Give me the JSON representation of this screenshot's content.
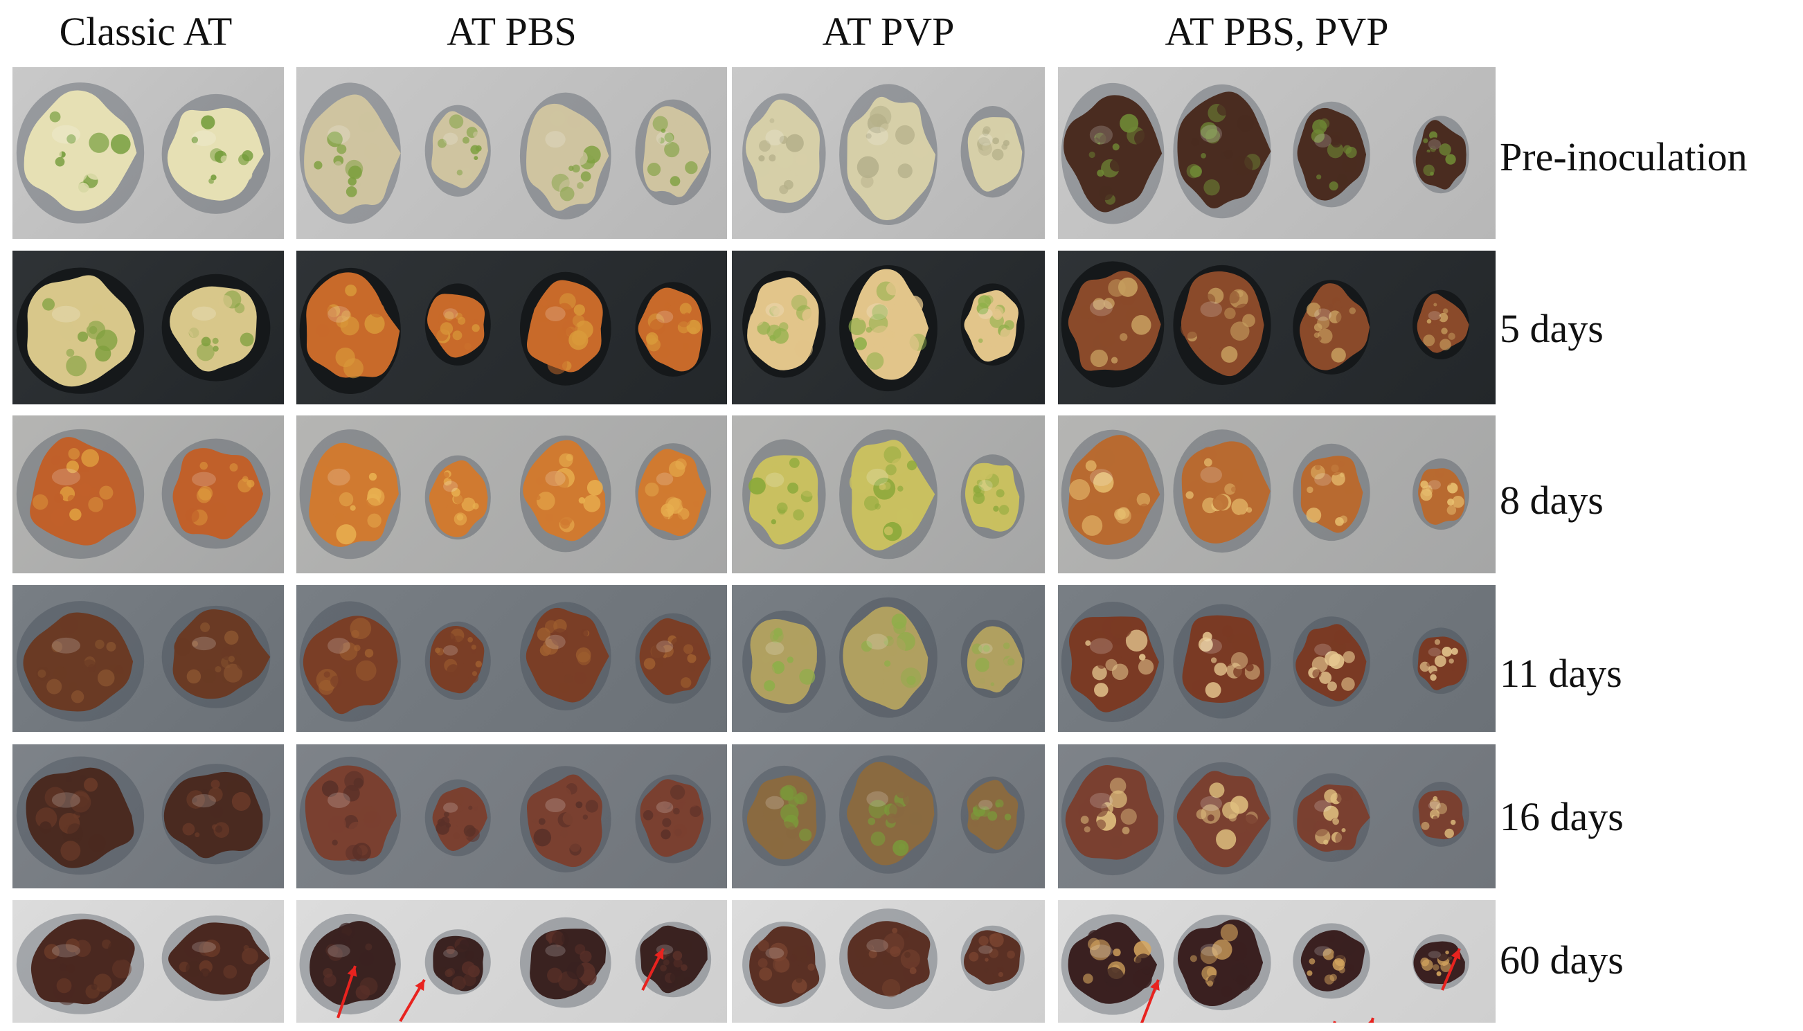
{
  "figure": {
    "columns": [
      "Classic AT",
      "AT PBS",
      "AT PVP",
      "AT PBS, PVP"
    ],
    "rows": [
      "Pre-inoculation",
      "5 days",
      "8 days",
      "11 days",
      "16 days",
      "60 days"
    ]
  },
  "colors": {
    "arrow": "#e8231f",
    "callus_green": "#5f8a2a",
    "callus_cream": "#e3d7a8",
    "callus_orange": "#c9732b",
    "callus_brown": "#5a2e1c",
    "callus_dark": "#3a1f18"
  },
  "specimens": {
    "per_group": [
      2,
      4,
      3,
      4
    ],
    "stages": [
      {
        "bg": "bg-light",
        "palette": [
          [
            "#e6e0b4",
            "#6f9a36"
          ],
          [
            "#cfc4a0",
            "#7ea040"
          ],
          [
            "#d6cfa8",
            "#b5b08a"
          ],
          [
            "#4a2c20",
            "#6f8a35"
          ]
        ]
      },
      {
        "bg": "bg-dark",
        "palette": [
          [
            "#d8c78a",
            "#7fa03f"
          ],
          [
            "#c86a2a",
            "#d99a3a"
          ],
          [
            "#e2c58a",
            "#8fb04a"
          ],
          [
            "#8a4a2a",
            "#c8a060"
          ]
        ]
      },
      {
        "bg": "bg-mid",
        "palette": [
          [
            "#c0602a",
            "#e0a040"
          ],
          [
            "#d07a30",
            "#e8b050"
          ],
          [
            "#c9c060",
            "#8aa83a"
          ],
          [
            "#b86a30",
            "#e8c070"
          ]
        ]
      },
      {
        "bg": "bg-slate",
        "palette": [
          [
            "#6a3a24",
            "#8a5530"
          ],
          [
            "#7a3e26",
            "#a06030"
          ],
          [
            "#b0a060",
            "#8fae4a"
          ],
          [
            "#7a3a24",
            "#e6c890"
          ]
        ]
      },
      {
        "bg": "bg-slate2",
        "palette": [
          [
            "#4a2a20",
            "#6a3a28"
          ],
          [
            "#7a4030",
            "#5a3028"
          ],
          [
            "#8a6a40",
            "#7a9a3a"
          ],
          [
            "#7a4030",
            "#e0c080"
          ]
        ]
      },
      {
        "bg": "bg-pale",
        "palette": [
          [
            "#4a2820",
            "#6a3a28"
          ],
          [
            "#3a2220",
            "#5a3028"
          ],
          [
            "#5a3024",
            "#7a4430"
          ],
          [
            "#3a2020",
            "#d8a860"
          ]
        ]
      }
    ]
  }
}
